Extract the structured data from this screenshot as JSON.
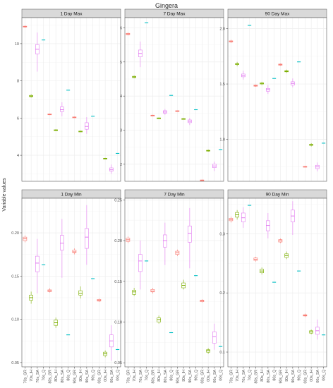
{
  "chart_data": {
    "type": "boxplot",
    "title": "Gingera",
    "ylabel": "Variable values",
    "xlabel": "",
    "grid": true,
    "legend": "none",
    "colors": {
      "GR": "#f8766d",
      "IH": "#7cae00",
      "SA": "#e27cf0",
      "Q": "#00bfc4",
      "strip": "#d9d9d9",
      "panel_border": "#555555",
      "grid": "#ebebeb"
    },
    "categories": [
      "70s_GR",
      "70s_IH",
      "70s_SA",
      "70s_Q",
      "80s_GR",
      "80s_IH",
      "80s_SA",
      "80s_Q",
      "90s_GR",
      "90s_IH",
      "90s_SA",
      "90s_Q",
      "00s_GR",
      "00s_IH",
      "00s_SA",
      "00s_Q"
    ],
    "category_group": [
      "GR",
      "IH",
      "SA",
      "Q",
      "GR",
      "IH",
      "SA",
      "Q",
      "GR",
      "IH",
      "SA",
      "Q",
      "GR",
      "IH",
      "SA",
      "Q"
    ],
    "panels": [
      {
        "title": "1 Day Max",
        "ylim": [
          2.6,
          11.4
        ],
        "yticks": [
          4,
          6,
          8,
          10
        ],
        "ytick_labels": [
          "4",
          "6",
          "8",
          "10"
        ],
        "boxes": [
          {
            "min": 10.85,
            "q1": 10.9,
            "median": 10.92,
            "q3": 10.94,
            "max": 10.98
          },
          {
            "min": 7.1,
            "q1": 7.15,
            "median": 7.18,
            "q3": 7.22,
            "max": 7.28
          },
          {
            "min": 8.5,
            "q1": 9.45,
            "median": 9.7,
            "q3": 9.95,
            "max": 10.6
          },
          {
            "min": 10.2,
            "q1": 10.2,
            "median": 10.2,
            "q3": 10.2,
            "max": 10.2
          },
          {
            "min": 6.16,
            "q1": 6.18,
            "median": 6.2,
            "q3": 6.22,
            "max": 6.24
          },
          {
            "min": 5.3,
            "q1": 5.33,
            "median": 5.35,
            "q3": 5.37,
            "max": 5.4
          },
          {
            "min": 6.1,
            "q1": 6.35,
            "median": 6.45,
            "q3": 6.6,
            "max": 6.85
          },
          {
            "min": 7.5,
            "q1": 7.5,
            "median": 7.5,
            "q3": 7.5,
            "max": 7.5
          },
          {
            "min": 6.0,
            "q1": 6.02,
            "median": 6.04,
            "q3": 6.06,
            "max": 6.08
          },
          {
            "min": 5.25,
            "q1": 5.27,
            "median": 5.28,
            "q3": 5.3,
            "max": 5.32
          },
          {
            "min": 5.15,
            "q1": 5.4,
            "median": 5.55,
            "q3": 5.75,
            "max": 6.05
          },
          {
            "min": 6.1,
            "q1": 6.1,
            "median": 6.1,
            "q3": 6.1,
            "max": 6.1
          },
          {
            "min": 2.1,
            "q1": 2.11,
            "median": 2.12,
            "q3": 2.13,
            "max": 2.14
          },
          {
            "min": 3.78,
            "q1": 3.8,
            "median": 3.82,
            "q3": 3.84,
            "max": 3.86
          },
          {
            "min": 3.0,
            "q1": 3.15,
            "median": 3.22,
            "q3": 3.32,
            "max": 3.5
          },
          {
            "min": 4.1,
            "q1": 4.1,
            "median": 4.1,
            "q3": 4.1,
            "max": 4.1
          }
        ]
      },
      {
        "title": "7 Day Max",
        "ylim": [
          1.5,
          6.3
        ],
        "yticks": [
          2,
          3,
          4,
          5,
          6
        ],
        "ytick_labels": [
          "2",
          "3",
          "4",
          "5",
          "6"
        ],
        "boxes": [
          {
            "min": 5.78,
            "q1": 5.8,
            "median": 5.82,
            "q3": 5.84,
            "max": 5.86
          },
          {
            "min": 4.52,
            "q1": 4.54,
            "median": 4.56,
            "q3": 4.58,
            "max": 4.6
          },
          {
            "min": 4.85,
            "q1": 5.15,
            "median": 5.25,
            "q3": 5.35,
            "max": 5.6
          },
          {
            "min": 6.15,
            "q1": 6.15,
            "median": 6.15,
            "q3": 6.15,
            "max": 6.15
          },
          {
            "min": 3.41,
            "q1": 3.42,
            "median": 3.43,
            "q3": 3.44,
            "max": 3.45
          },
          {
            "min": 3.33,
            "q1": 3.34,
            "median": 3.35,
            "q3": 3.36,
            "max": 3.37
          },
          {
            "min": 3.45,
            "q1": 3.5,
            "median": 3.53,
            "q3": 3.57,
            "max": 3.62
          },
          {
            "min": 4.02,
            "q1": 4.02,
            "median": 4.02,
            "q3": 4.02,
            "max": 4.02
          },
          {
            "min": 3.54,
            "q1": 3.55,
            "median": 3.56,
            "q3": 3.57,
            "max": 3.58
          },
          {
            "min": 3.31,
            "q1": 3.32,
            "median": 3.33,
            "q3": 3.34,
            "max": 3.35
          },
          {
            "min": 3.15,
            "q1": 3.22,
            "median": 3.26,
            "q3": 3.3,
            "max": 3.36
          },
          {
            "min": 3.6,
            "q1": 3.6,
            "median": 3.6,
            "q3": 3.6,
            "max": 3.6
          },
          {
            "min": 1.51,
            "q1": 1.52,
            "median": 1.53,
            "q3": 1.54,
            "max": 1.55
          },
          {
            "min": 2.37,
            "q1": 2.39,
            "median": 2.4,
            "q3": 2.41,
            "max": 2.43
          },
          {
            "min": 1.8,
            "q1": 1.9,
            "median": 1.95,
            "q3": 2.0,
            "max": 2.08
          },
          {
            "min": 2.43,
            "q1": 2.43,
            "median": 2.43,
            "q3": 2.43,
            "max": 2.43
          }
        ]
      },
      {
        "title": "90 Day Max",
        "ylim": [
          0.62,
          2.1
        ],
        "yticks": [
          1.0,
          1.5,
          2.0
        ],
        "ytick_labels": [
          "1.0",
          "1.5",
          "2.0"
        ],
        "boxes": [
          {
            "min": 1.87,
            "q1": 1.88,
            "median": 1.885,
            "q3": 1.89,
            "max": 1.9
          },
          {
            "min": 1.66,
            "q1": 1.675,
            "median": 1.68,
            "q3": 1.685,
            "max": 1.7
          },
          {
            "min": 1.54,
            "q1": 1.565,
            "median": 1.575,
            "q3": 1.59,
            "max": 1.62
          },
          {
            "min": 2.03,
            "q1": 2.03,
            "median": 2.03,
            "q3": 2.03,
            "max": 2.03
          },
          {
            "min": 1.475,
            "q1": 1.48,
            "median": 1.485,
            "q3": 1.49,
            "max": 1.495
          },
          {
            "min": 1.49,
            "q1": 1.5,
            "median": 1.505,
            "q3": 1.51,
            "max": 1.52
          },
          {
            "min": 1.41,
            "q1": 1.435,
            "median": 1.45,
            "q3": 1.46,
            "max": 1.49
          },
          {
            "min": 1.55,
            "q1": 1.55,
            "median": 1.55,
            "q3": 1.55,
            "max": 1.55
          },
          {
            "min": 1.665,
            "q1": 1.67,
            "median": 1.675,
            "q3": 1.68,
            "max": 1.685
          },
          {
            "min": 1.6,
            "q1": 1.61,
            "median": 1.615,
            "q3": 1.62,
            "max": 1.63
          },
          {
            "min": 1.47,
            "q1": 1.49,
            "median": 1.505,
            "q3": 1.52,
            "max": 1.55
          },
          {
            "min": 1.7,
            "q1": 1.7,
            "median": 1.7,
            "q3": 1.7,
            "max": 1.7
          },
          {
            "min": 0.745,
            "q1": 0.75,
            "median": 0.752,
            "q3": 0.755,
            "max": 0.76
          },
          {
            "min": 0.935,
            "q1": 0.945,
            "median": 0.95,
            "q3": 0.955,
            "max": 0.965
          },
          {
            "min": 0.71,
            "q1": 0.735,
            "median": 0.75,
            "q3": 0.765,
            "max": 0.79
          },
          {
            "min": 0.965,
            "q1": 0.965,
            "median": 0.965,
            "q3": 0.965,
            "max": 0.965
          }
        ]
      },
      {
        "title": "1 Day Min",
        "ylim": [
          0.045,
          0.24
        ],
        "yticks": [
          0.05,
          0.1,
          0.15,
          0.2
        ],
        "ytick_labels": [
          "0.05",
          "0.10",
          "0.15",
          "0.20"
        ],
        "boxes": [
          {
            "min": 0.189,
            "q1": 0.191,
            "median": 0.193,
            "q3": 0.195,
            "max": 0.197
          },
          {
            "min": 0.118,
            "q1": 0.122,
            "median": 0.125,
            "q3": 0.128,
            "max": 0.132
          },
          {
            "min": 0.13,
            "q1": 0.155,
            "median": 0.165,
            "q3": 0.173,
            "max": 0.193
          },
          {
            "min": 0.163,
            "q1": 0.163,
            "median": 0.163,
            "q3": 0.163,
            "max": 0.163
          },
          {
            "min": 0.131,
            "q1": 0.132,
            "median": 0.133,
            "q3": 0.134,
            "max": 0.136
          },
          {
            "min": 0.09,
            "q1": 0.093,
            "median": 0.096,
            "q3": 0.099,
            "max": 0.102
          },
          {
            "min": 0.148,
            "q1": 0.18,
            "median": 0.188,
            "q3": 0.197,
            "max": 0.216
          },
          {
            "min": 0.082,
            "q1": 0.082,
            "median": 0.082,
            "q3": 0.082,
            "max": 0.082
          },
          {
            "min": 0.175,
            "q1": 0.177,
            "median": 0.178,
            "q3": 0.18,
            "max": 0.182
          },
          {
            "min": 0.124,
            "q1": 0.128,
            "median": 0.13,
            "q3": 0.133,
            "max": 0.138
          },
          {
            "min": 0.163,
            "q1": 0.182,
            "median": 0.195,
            "q3": 0.205,
            "max": 0.232
          },
          {
            "min": 0.147,
            "q1": 0.147,
            "median": 0.147,
            "q3": 0.147,
            "max": 0.147
          },
          {
            "min": 0.12,
            "q1": 0.121,
            "median": 0.122,
            "q3": 0.123,
            "max": 0.124
          },
          {
            "min": 0.056,
            "q1": 0.058,
            "median": 0.06,
            "q3": 0.062,
            "max": 0.064
          },
          {
            "min": 0.052,
            "q1": 0.068,
            "median": 0.075,
            "q3": 0.082,
            "max": 0.093
          },
          {
            "min": 0.065,
            "q1": 0.065,
            "median": 0.065,
            "q3": 0.065,
            "max": 0.065
          }
        ]
      },
      {
        "title": "7 Day Min",
        "ylim": [
          0.045,
          0.252
        ],
        "yticks": [
          0.05,
          0.1,
          0.15,
          0.2,
          0.25
        ],
        "ytick_labels": [
          "0.05",
          "0.10",
          "0.15",
          "0.20",
          "0.25"
        ],
        "boxes": [
          {
            "min": 0.197,
            "q1": 0.199,
            "median": 0.201,
            "q3": 0.203,
            "max": 0.205
          },
          {
            "min": 0.132,
            "q1": 0.134,
            "median": 0.137,
            "q3": 0.139,
            "max": 0.142
          },
          {
            "min": 0.14,
            "q1": 0.162,
            "median": 0.175,
            "q3": 0.183,
            "max": 0.2
          },
          {
            "min": 0.175,
            "q1": 0.175,
            "median": 0.175,
            "q3": 0.175,
            "max": 0.175
          },
          {
            "min": 0.135,
            "q1": 0.137,
            "median": 0.138,
            "q3": 0.14,
            "max": 0.142
          },
          {
            "min": 0.098,
            "q1": 0.1,
            "median": 0.103,
            "q3": 0.105,
            "max": 0.108
          },
          {
            "min": 0.17,
            "q1": 0.192,
            "median": 0.2,
            "q3": 0.207,
            "max": 0.222
          },
          {
            "min": 0.087,
            "q1": 0.087,
            "median": 0.087,
            "q3": 0.087,
            "max": 0.087
          },
          {
            "min": 0.181,
            "q1": 0.183,
            "median": 0.185,
            "q3": 0.187,
            "max": 0.189
          },
          {
            "min": 0.14,
            "q1": 0.142,
            "median": 0.145,
            "q3": 0.148,
            "max": 0.152
          },
          {
            "min": 0.166,
            "q1": 0.198,
            "median": 0.209,
            "q3": 0.218,
            "max": 0.24
          },
          {
            "min": 0.157,
            "q1": 0.157,
            "median": 0.157,
            "q3": 0.157,
            "max": 0.157
          },
          {
            "min": 0.124,
            "q1": 0.125,
            "median": 0.126,
            "q3": 0.127,
            "max": 0.128
          },
          {
            "min": 0.061,
            "q1": 0.063,
            "median": 0.065,
            "q3": 0.066,
            "max": 0.068
          },
          {
            "min": 0.066,
            "q1": 0.074,
            "median": 0.082,
            "q3": 0.088,
            "max": 0.098
          },
          {
            "min": 0.07,
            "q1": 0.07,
            "median": 0.07,
            "q3": 0.07,
            "max": 0.07
          }
        ]
      },
      {
        "title": "90 Day Min",
        "ylim": [
          0.075,
          0.36
        ],
        "yticks": [
          0.1,
          0.2,
          0.3
        ],
        "ytick_labels": [
          "0.1",
          "0.2",
          "0.3"
        ],
        "boxes": [
          {
            "min": 0.319,
            "q1": 0.322,
            "median": 0.324,
            "q3": 0.326,
            "max": 0.329
          },
          {
            "min": 0.324,
            "q1": 0.328,
            "median": 0.332,
            "q3": 0.336,
            "max": 0.34
          },
          {
            "min": 0.31,
            "q1": 0.32,
            "median": 0.327,
            "q3": 0.335,
            "max": 0.345
          },
          {
            "min": 0.348,
            "q1": 0.348,
            "median": 0.348,
            "q3": 0.348,
            "max": 0.348
          },
          {
            "min": 0.253,
            "q1": 0.255,
            "median": 0.257,
            "q3": 0.259,
            "max": 0.261
          },
          {
            "min": 0.231,
            "q1": 0.234,
            "median": 0.237,
            "q3": 0.24,
            "max": 0.243
          },
          {
            "min": 0.292,
            "q1": 0.305,
            "median": 0.314,
            "q3": 0.322,
            "max": 0.335
          },
          {
            "min": 0.218,
            "q1": 0.218,
            "median": 0.218,
            "q3": 0.218,
            "max": 0.218
          },
          {
            "min": 0.284,
            "q1": 0.286,
            "median": 0.288,
            "q3": 0.29,
            "max": 0.292
          },
          {
            "min": 0.257,
            "q1": 0.26,
            "median": 0.263,
            "q3": 0.266,
            "max": 0.27
          },
          {
            "min": 0.298,
            "q1": 0.32,
            "median": 0.33,
            "q3": 0.34,
            "max": 0.355
          },
          {
            "min": 0.237,
            "q1": 0.237,
            "median": 0.237,
            "q3": 0.237,
            "max": 0.237
          },
          {
            "min": 0.159,
            "q1": 0.161,
            "median": 0.162,
            "q3": 0.163,
            "max": 0.165
          },
          {
            "min": 0.13,
            "q1": 0.132,
            "median": 0.134,
            "q3": 0.136,
            "max": 0.138
          },
          {
            "min": 0.121,
            "q1": 0.13,
            "median": 0.136,
            "q3": 0.142,
            "max": 0.155
          },
          {
            "min": 0.129,
            "q1": 0.129,
            "median": 0.129,
            "q3": 0.129,
            "max": 0.129
          }
        ]
      }
    ]
  }
}
